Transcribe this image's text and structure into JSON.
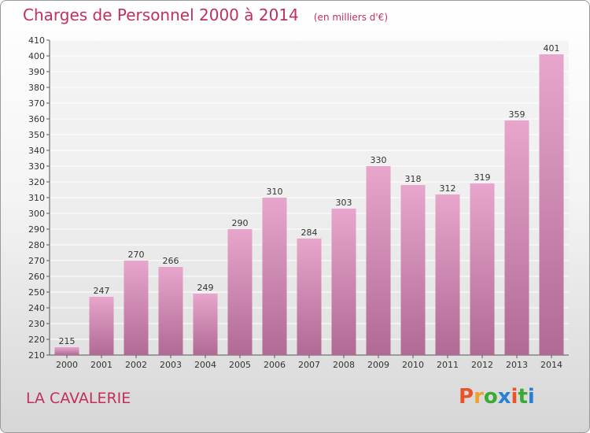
{
  "header": {
    "title": "Charges de Personnel 2000 à 2014",
    "unit": "(en milliers d'€)"
  },
  "footer": {
    "commune": "LA CAVALERIE",
    "logo_text": "Proxiti",
    "logo_colors": [
      "#e8542a",
      "#f0a030",
      "#3aaa35",
      "#2a7fd4",
      "#e8542a",
      "#3aaa35",
      "#2a7fd4"
    ]
  },
  "colors": {
    "title": "#c0305a",
    "bar_light": "#e8a6cc",
    "bar_dark": "#b06a94",
    "grid": "#ffffff"
  },
  "chart_data": {
    "type": "bar",
    "title": "Charges de Personnel 2000 à 2014",
    "subtitle": "(en milliers d'€)",
    "categories": [
      "2000",
      "2001",
      "2002",
      "2003",
      "2004",
      "2005",
      "2006",
      "2007",
      "2008",
      "2009",
      "2010",
      "2011",
      "2012",
      "2013",
      "2014"
    ],
    "values": [
      215,
      247,
      270,
      266,
      249,
      290,
      310,
      284,
      303,
      330,
      318,
      312,
      319,
      359,
      401
    ],
    "ylim": [
      210,
      410
    ],
    "ytick_step": 10,
    "grid": true,
    "legend": "none"
  }
}
